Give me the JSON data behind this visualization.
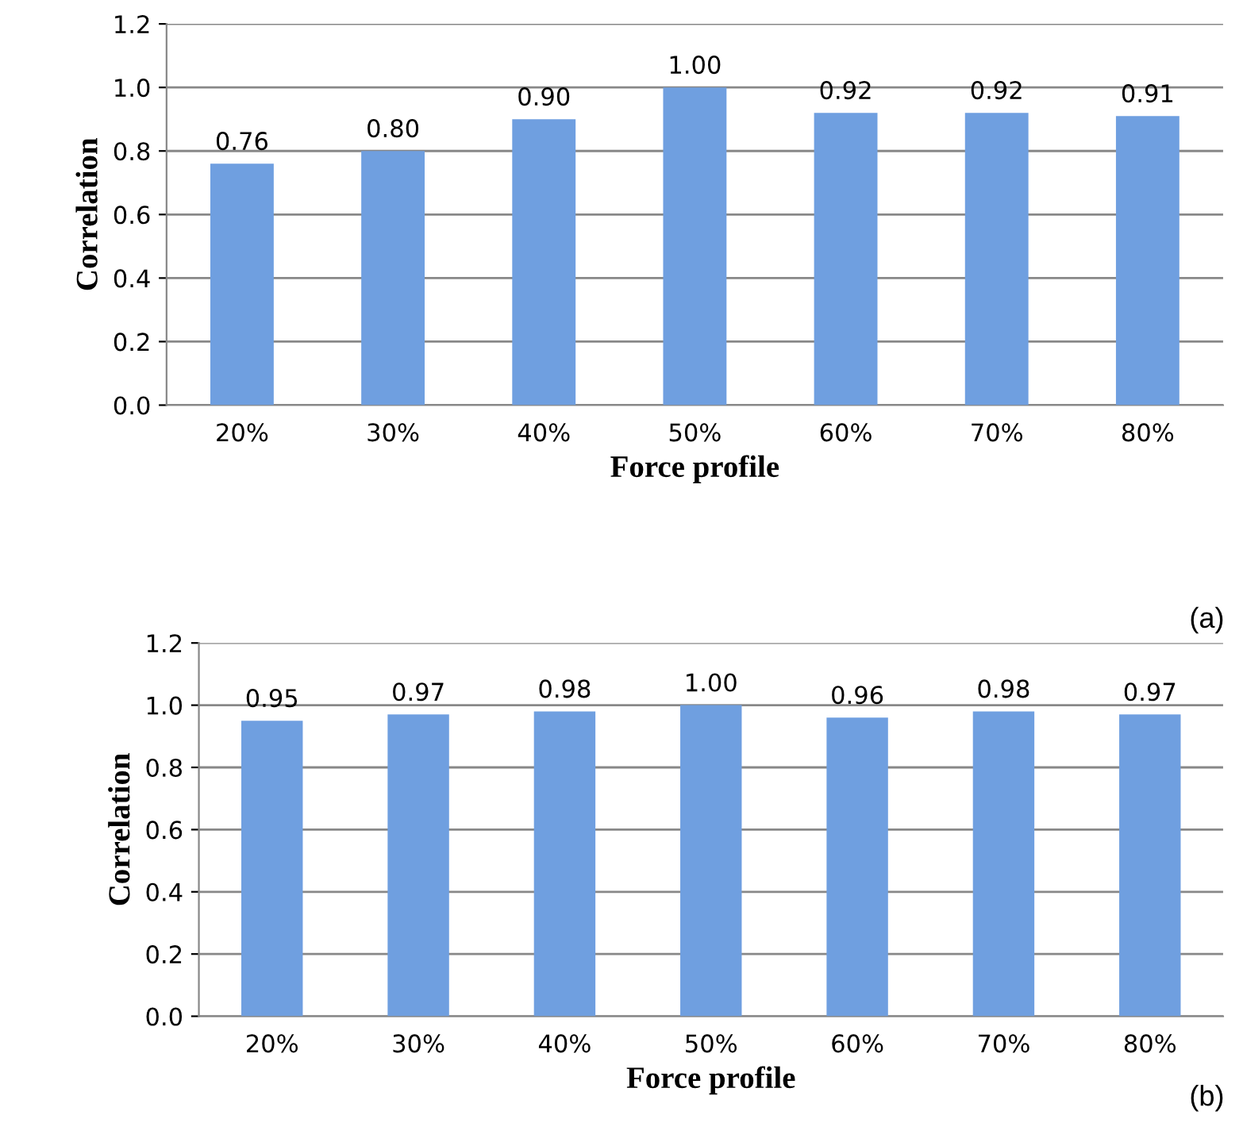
{
  "chart_data": [
    {
      "type": "bar",
      "xlabel": "Force profile",
      "ylabel": "Correlation",
      "categories": [
        "20%",
        "30%",
        "40%",
        "50%",
        "60%",
        "70%",
        "80%"
      ],
      "values": [
        0.76,
        0.8,
        0.9,
        1.0,
        0.92,
        0.92,
        0.91
      ],
      "value_labels": [
        "0.76",
        "0.80",
        "0.90",
        "1.00",
        "0.92",
        "0.92",
        "0.91"
      ],
      "color": "#6f9fe0",
      "ylim": [
        0,
        1.2
      ],
      "yticks": [
        {
          "value": 0,
          "label": "0.0"
        },
        {
          "value": 0.2,
          "label": "0.2"
        },
        {
          "value": 0.4,
          "label": "0.4"
        },
        {
          "value": 0.6,
          "label": "0.6"
        },
        {
          "value": 0.8,
          "label": "0.8"
        },
        {
          "value": 1.0,
          "label": "1.0"
        },
        {
          "value": 1.2,
          "label": "1.2"
        }
      ],
      "grid": "y",
      "annotations": [
        "(a)"
      ]
    },
    {
      "type": "bar",
      "xlabel": "Force profile",
      "ylabel": "Correlation",
      "categories": [
        "20%",
        "30%",
        "40%",
        "50%",
        "60%",
        "70%",
        "80%"
      ],
      "values": [
        0.95,
        0.97,
        0.98,
        1.0,
        0.96,
        0.98,
        0.97
      ],
      "value_labels": [
        "0.95",
        "0.97",
        "0.98",
        "1.00",
        "0.96",
        "0.98",
        "0.97"
      ],
      "color": "#6f9fe0",
      "ylim": [
        0,
        1.2
      ],
      "yticks": [
        {
          "value": 0,
          "label": "0.0"
        },
        {
          "value": 0.2,
          "label": "0.2"
        },
        {
          "value": 0.4,
          "label": "0.4"
        },
        {
          "value": 0.6,
          "label": "0.6"
        },
        {
          "value": 0.8,
          "label": "0.8"
        },
        {
          "value": 1.0,
          "label": "1.0"
        },
        {
          "value": 1.2,
          "label": "1.2"
        }
      ],
      "grid": "y",
      "annotations": [
        "(b)"
      ]
    }
  ]
}
